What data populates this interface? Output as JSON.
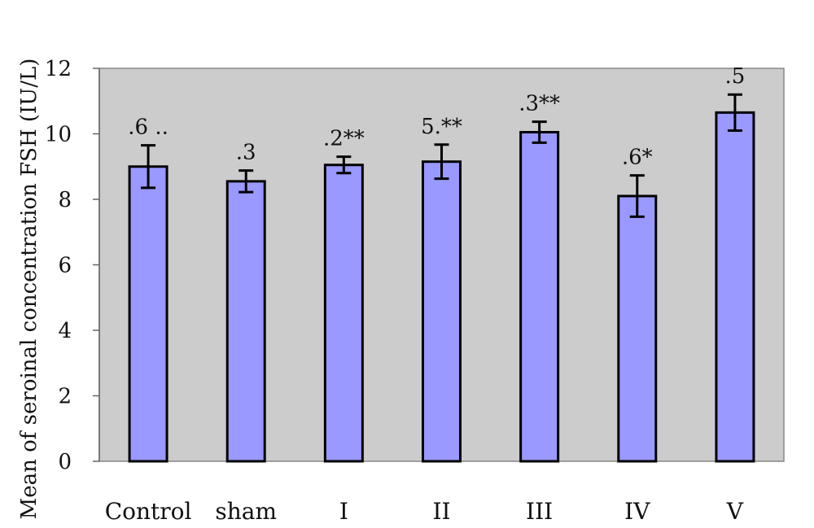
{
  "chart_data": {
    "type": "bar",
    "title": "",
    "xlabel": "",
    "ylabel": "Mean of seroinal concentration FSH (IU/L)",
    "ylim": [
      0,
      12
    ],
    "yticks": [
      0,
      2,
      4,
      6,
      8,
      10,
      12
    ],
    "categories": [
      "Control",
      "sham",
      "I",
      "II",
      "III",
      "IV",
      "V"
    ],
    "values": [
      9.0,
      8.55,
      9.05,
      9.15,
      10.05,
      8.1,
      10.65
    ],
    "errors": [
      0.65,
      0.33,
      0.25,
      0.52,
      0.32,
      0.63,
      0.55
    ],
    "data_labels": [
      ".6 ..",
      ".3",
      ".2**",
      "5.**",
      ".3**",
      ".6*",
      ".5"
    ],
    "grid": false,
    "colors": {
      "plot_background": "#cccccc",
      "bar_fill": "#9999ff",
      "bar_stroke": "#000000",
      "error_bar": "#000000"
    }
  }
}
